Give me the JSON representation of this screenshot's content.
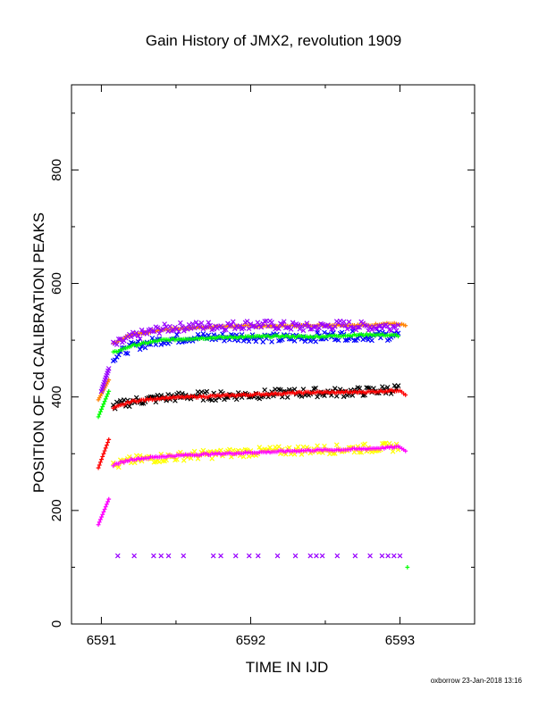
{
  "chart_data": {
    "type": "scatter",
    "title": "Gain History of JMX2, revolution 1909",
    "xlabel": "TIME IN IJD",
    "ylabel": "POSITION OF Cd CALIBRATION PEAKS",
    "xlim": [
      6590.8,
      6593.5
    ],
    "ylim": [
      0,
      950
    ],
    "xticks": [
      "6591",
      "6592",
      "6593"
    ],
    "yticks": [
      "0",
      "200",
      "400",
      "600",
      "800"
    ],
    "grid": false,
    "footer": "oxborrow 23-Jan-2018 13:16",
    "series": [
      {
        "color": "#ff8000",
        "marker": "+",
        "values": [
          [
            6591.08,
            495
          ],
          [
            6591.2,
            510
          ],
          [
            6591.4,
            518
          ],
          [
            6591.6,
            522
          ],
          [
            6591.8,
            524
          ],
          [
            6592.0,
            525
          ],
          [
            6592.2,
            525
          ],
          [
            6592.4,
            526
          ],
          [
            6592.6,
            527
          ],
          [
            6592.8,
            526
          ],
          [
            6592.9,
            530
          ],
          [
            6593.0,
            528
          ],
          [
            6593.05,
            525
          ]
        ]
      },
      {
        "color": "#9900ff",
        "marker": "x",
        "values": [
          [
            6591.08,
            490
          ],
          [
            6591.2,
            505
          ],
          [
            6591.4,
            520
          ],
          [
            6591.6,
            525
          ],
          [
            6591.8,
            525
          ],
          [
            6592.0,
            528
          ],
          [
            6592.2,
            526
          ],
          [
            6592.4,
            522
          ],
          [
            6592.6,
            527
          ],
          [
            6592.8,
            524
          ],
          [
            6593.0,
            525
          ]
        ]
      },
      {
        "color": "#0000ff",
        "marker": "x",
        "values": [
          [
            6591.08,
            470
          ],
          [
            6591.2,
            488
          ],
          [
            6591.4,
            500
          ],
          [
            6591.6,
            505
          ],
          [
            6591.8,
            505
          ],
          [
            6592.0,
            506
          ],
          [
            6592.2,
            503
          ],
          [
            6592.4,
            505
          ],
          [
            6592.6,
            508
          ],
          [
            6592.8,
            507
          ],
          [
            6593.0,
            508
          ]
        ]
      },
      {
        "color": "#00ff00",
        "marker": "+",
        "values": [
          [
            6591.08,
            478
          ],
          [
            6591.2,
            490
          ],
          [
            6591.4,
            500
          ],
          [
            6591.6,
            503
          ],
          [
            6591.8,
            505
          ],
          [
            6592.0,
            506
          ],
          [
            6592.2,
            507
          ],
          [
            6592.4,
            506
          ],
          [
            6592.6,
            508
          ],
          [
            6592.8,
            510
          ],
          [
            6593.0,
            508
          ],
          [
            6593.05,
            100
          ]
        ]
      },
      {
        "color": "#000000",
        "marker": "x",
        "values": [
          [
            6591.08,
            382
          ],
          [
            6591.2,
            392
          ],
          [
            6591.4,
            398
          ],
          [
            6591.6,
            402
          ],
          [
            6591.8,
            402
          ],
          [
            6592.0,
            404
          ],
          [
            6592.2,
            406
          ],
          [
            6592.4,
            408
          ],
          [
            6592.6,
            408
          ],
          [
            6592.8,
            410
          ],
          [
            6593.0,
            415
          ]
        ]
      },
      {
        "color": "#ff0000",
        "marker": "+",
        "values": [
          [
            6591.08,
            380
          ],
          [
            6591.2,
            392
          ],
          [
            6591.4,
            398
          ],
          [
            6591.6,
            400
          ],
          [
            6591.8,
            402
          ],
          [
            6592.0,
            404
          ],
          [
            6592.2,
            406
          ],
          [
            6592.4,
            408
          ],
          [
            6592.6,
            408
          ],
          [
            6592.8,
            409
          ],
          [
            6593.0,
            412
          ],
          [
            6593.05,
            402
          ]
        ]
      },
      {
        "color": "#ffff00",
        "marker": "x",
        "values": [
          [
            6591.08,
            278
          ],
          [
            6591.2,
            288
          ],
          [
            6591.4,
            293
          ],
          [
            6591.6,
            297
          ],
          [
            6591.8,
            300
          ],
          [
            6592.0,
            303
          ],
          [
            6592.2,
            305
          ],
          [
            6592.4,
            307
          ],
          [
            6592.6,
            308
          ],
          [
            6592.8,
            310
          ],
          [
            6593.0,
            312
          ]
        ]
      },
      {
        "color": "#ff00ff",
        "marker": "+",
        "values": [
          [
            6591.08,
            280
          ],
          [
            6591.2,
            290
          ],
          [
            6591.4,
            295
          ],
          [
            6591.6,
            298
          ],
          [
            6591.8,
            300
          ],
          [
            6592.0,
            302
          ],
          [
            6592.2,
            304
          ],
          [
            6592.4,
            306
          ],
          [
            6592.6,
            307
          ],
          [
            6592.8,
            309
          ],
          [
            6593.0,
            312
          ],
          [
            6593.05,
            302
          ]
        ]
      }
    ],
    "ramps": [
      {
        "color": "#ff8000",
        "marker": "+",
        "x0": 6590.98,
        "y0": 395,
        "x1": 6591.05,
        "y1": 430
      },
      {
        "color": "#00ff00",
        "marker": "+",
        "x0": 6590.98,
        "y0": 365,
        "x1": 6591.05,
        "y1": 410
      },
      {
        "color": "#9900ff",
        "marker": "x",
        "x0": 6591.0,
        "y0": 410,
        "x1": 6591.05,
        "y1": 450
      },
      {
        "color": "#ff0000",
        "marker": "+",
        "x0": 6590.98,
        "y0": 275,
        "x1": 6591.05,
        "y1": 325
      },
      {
        "color": "#ff00ff",
        "marker": "+",
        "x0": 6590.98,
        "y0": 175,
        "x1": 6591.05,
        "y1": 220
      }
    ],
    "outliers": {
      "color": "#9900ff",
      "marker": "x",
      "y": 120,
      "x": [
        6591.11,
        6591.22,
        6591.35,
        6591.4,
        6591.45,
        6591.55,
        6591.75,
        6591.8,
        6591.9,
        6591.99,
        6592.05,
        6592.18,
        6592.3,
        6592.4,
        6592.44,
        6592.48,
        6592.58,
        6592.7,
        6592.8,
        6592.88,
        6592.92,
        6592.96,
        6593.0
      ]
    }
  }
}
